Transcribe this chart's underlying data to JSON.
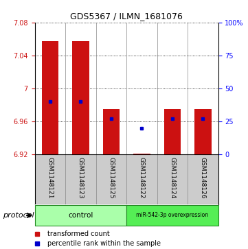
{
  "title": "GDS5367 / ILMN_1681076",
  "samples": [
    "GSM1148121",
    "GSM1148123",
    "GSM1148125",
    "GSM1148122",
    "GSM1148124",
    "GSM1148126"
  ],
  "bar_tops": [
    7.057,
    7.057,
    6.975,
    6.921,
    6.975,
    6.975
  ],
  "bar_bottom": 6.92,
  "percentile_values": [
    6.984,
    6.984,
    6.963,
    6.952,
    6.963,
    6.963
  ],
  "ylim_left": [
    6.92,
    7.08
  ],
  "ylim_right": [
    0,
    100
  ],
  "yticks_left": [
    6.92,
    6.96,
    7.0,
    7.04,
    7.08
  ],
  "ytick_labels_left": [
    "6.92",
    "6.96",
    "7",
    "7.04",
    "7.08"
  ],
  "yticks_right": [
    0,
    25,
    50,
    75,
    100
  ],
  "ytick_labels_right": [
    "0",
    "25",
    "50",
    "75",
    "100%"
  ],
  "bar_color": "#cc1111",
  "square_color": "#0000cc",
  "group1_label": "control",
  "group2_label": "miR-542-3p overexpression",
  "group1_color": "#aaffaa",
  "group2_color": "#55ee55",
  "protocol_label": "protocol",
  "legend1": "transformed count",
  "legend2": "percentile rank within the sample",
  "label_bg": "#cccccc",
  "plot_bg": "#ffffff"
}
